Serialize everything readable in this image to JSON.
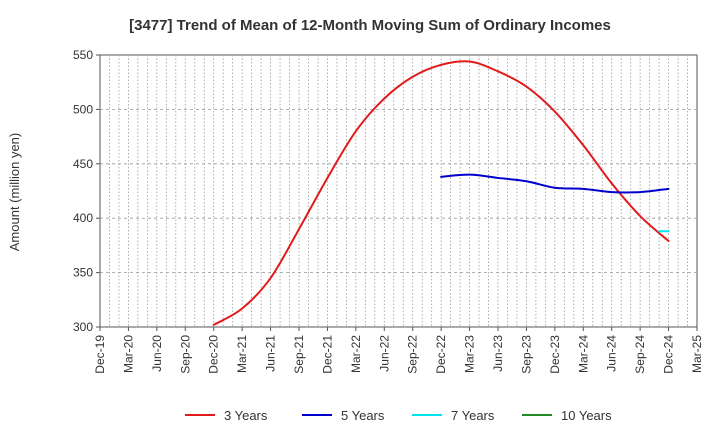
{
  "chart_data": {
    "type": "line",
    "title": "[3477]  Trend of Mean of 12-Month Moving Sum of Ordinary Incomes",
    "xlabel": "",
    "ylabel": "Amount (million yen)",
    "ylim": [
      300,
      550
    ],
    "yticks": [
      300,
      350,
      400,
      450,
      500,
      550
    ],
    "categories": [
      "Dec-19",
      "Mar-20",
      "Jun-20",
      "Sep-20",
      "Dec-20",
      "Mar-21",
      "Jun-21",
      "Sep-21",
      "Dec-21",
      "Mar-22",
      "Jun-22",
      "Sep-22",
      "Dec-22",
      "Mar-23",
      "Jun-23",
      "Sep-23",
      "Dec-23",
      "Mar-24",
      "Jun-24",
      "Sep-24",
      "Dec-24",
      "Mar-25"
    ],
    "grid": true,
    "legend_position": "bottom",
    "series": [
      {
        "name": "3 Years",
        "color": "#e31a1c",
        "points": [
          [
            "Dec-20",
            302
          ],
          [
            "Mar-21",
            317
          ],
          [
            "Jun-21",
            345
          ],
          [
            "Sep-21",
            390
          ],
          [
            "Dec-21",
            437
          ],
          [
            "Mar-22",
            480
          ],
          [
            "Jun-22",
            510
          ],
          [
            "Sep-22",
            530
          ],
          [
            "Dec-22",
            541
          ],
          [
            "Mar-23",
            544
          ],
          [
            "Jun-23",
            535
          ],
          [
            "Sep-23",
            521
          ],
          [
            "Dec-23",
            498
          ],
          [
            "Mar-24",
            467
          ],
          [
            "Jun-24",
            432
          ],
          [
            "Sep-24",
            402
          ],
          [
            "Dec-24",
            379
          ]
        ]
      },
      {
        "name": "5 Years",
        "color": "#0000cc",
        "points": [
          [
            "Dec-22",
            438
          ],
          [
            "Mar-23",
            440
          ],
          [
            "Jun-23",
            437
          ],
          [
            "Sep-23",
            434
          ],
          [
            "Dec-23",
            428
          ],
          [
            "Mar-24",
            427
          ],
          [
            "Jun-24",
            424
          ],
          [
            "Sep-24",
            424
          ],
          [
            "Dec-24",
            427
          ]
        ]
      },
      {
        "name": "7 Years",
        "color": "#00e5ee",
        "points": [
          [
            "Nov-24",
            388
          ],
          [
            "Dec-24",
            388
          ]
        ]
      },
      {
        "name": "10 Years",
        "color": "#228b22",
        "points": []
      }
    ]
  }
}
